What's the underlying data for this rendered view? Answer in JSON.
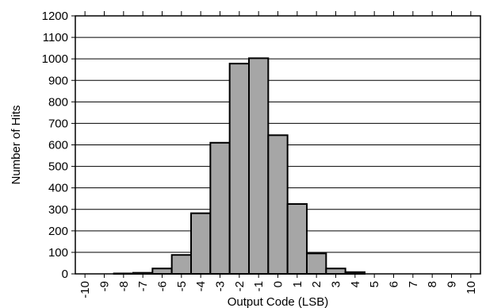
{
  "chart_data": {
    "type": "bar",
    "title": "",
    "xlabel": "Output Code (LSB)",
    "ylabel": "Number of Hits",
    "categories": [
      "-10",
      "-9",
      "-8",
      "-7",
      "-6",
      "-5",
      "-4",
      "-3",
      "-2",
      "-1",
      "0",
      "1",
      "2",
      "3",
      "4",
      "5",
      "6",
      "7",
      "8",
      "9",
      "10"
    ],
    "values": [
      0,
      0,
      2,
      5,
      25,
      88,
      282,
      610,
      978,
      1003,
      645,
      325,
      95,
      25,
      8,
      0,
      0,
      0,
      0,
      0,
      0
    ],
    "ylim": [
      0,
      1200
    ],
    "y_ticks": [
      0,
      100,
      200,
      300,
      400,
      500,
      600,
      700,
      800,
      900,
      1000,
      1100,
      1200
    ],
    "grid": true,
    "grid_axis": "y",
    "legend": "none",
    "colors": {
      "bar_fill": "#a6a6a6",
      "bar_stroke": "#000000",
      "grid": "#000000",
      "axis": "#000000"
    }
  }
}
